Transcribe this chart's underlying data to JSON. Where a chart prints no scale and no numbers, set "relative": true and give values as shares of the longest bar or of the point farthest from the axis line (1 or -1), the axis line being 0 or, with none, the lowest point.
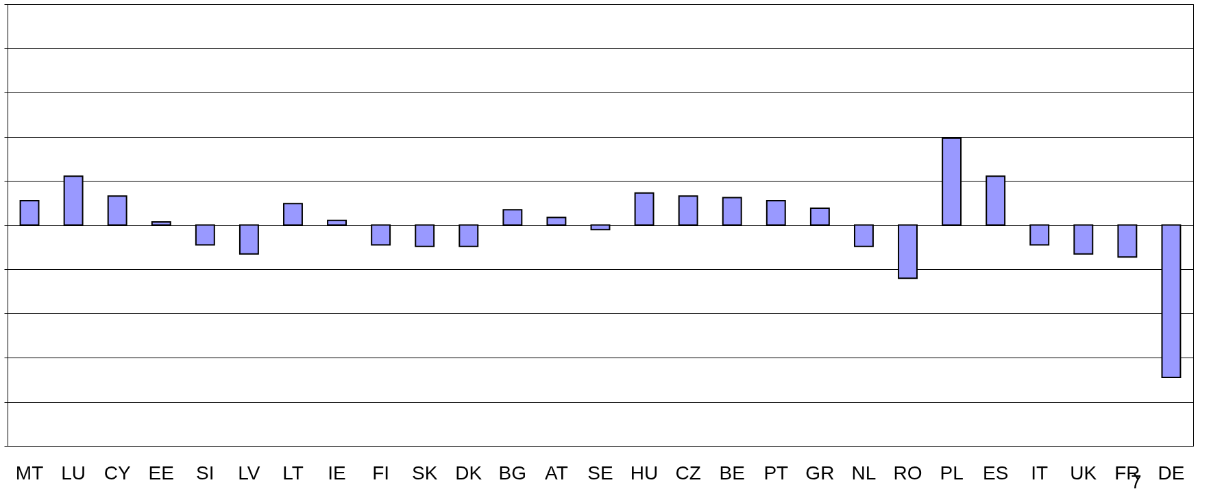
{
  "chart_data": {
    "type": "bar",
    "relative": true,
    "grid": "y",
    "color": "#9999ff",
    "categories": [
      "MT",
      "LU",
      "CY",
      "EE",
      "SI",
      "LV",
      "LT",
      "IE",
      "FI",
      "SK",
      "DK",
      "BG",
      "AT",
      "SE",
      "HU",
      "CZ",
      "BE",
      "PT",
      "GR",
      "NL",
      "RO",
      "PL",
      "ES",
      "IT",
      "UK",
      "FR",
      "DE"
    ],
    "values": [
      0.16,
      0.32,
      0.19,
      0.02,
      -0.13,
      -0.19,
      0.14,
      0.03,
      -0.13,
      -0.14,
      -0.14,
      0.1,
      0.05,
      -0.03,
      0.21,
      0.19,
      0.18,
      0.16,
      0.11,
      -0.14,
      -0.35,
      0.57,
      0.32,
      -0.13,
      -0.19,
      -0.21,
      -1
    ],
    "annotations": [
      "7"
    ]
  }
}
